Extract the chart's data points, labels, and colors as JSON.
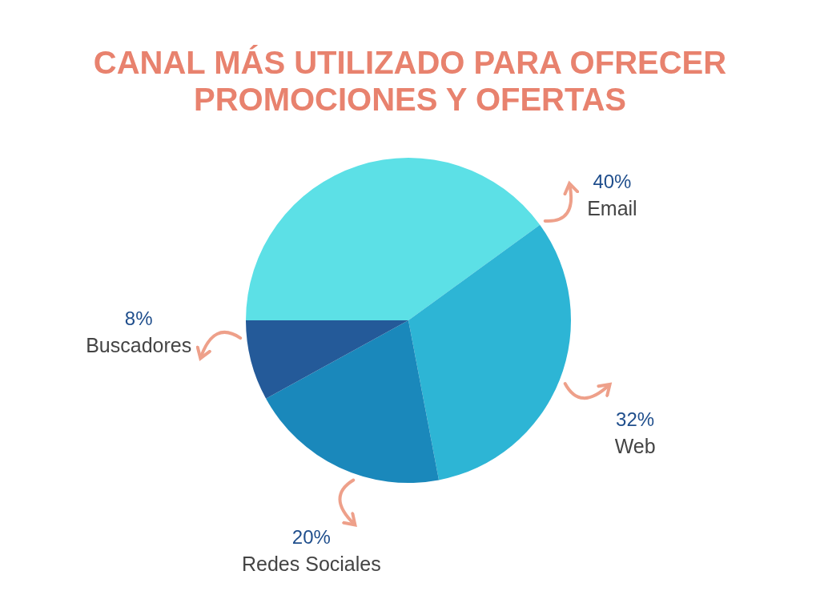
{
  "chart_data": {
    "type": "pie",
    "title": "CANAL MÁS UTILIZADO PARA OFRECER PROMOCIONES Y OFERTAS",
    "categories": [
      "Email",
      "Web",
      "Redes Sociales",
      "Buscadores"
    ],
    "values": [
      40,
      32,
      20,
      8
    ],
    "colors": [
      "#5ce0e6",
      "#2db5d5",
      "#1a88bb",
      "#245a99"
    ],
    "value_labels": [
      "40%",
      "32%",
      "20%",
      "8%"
    ]
  }
}
